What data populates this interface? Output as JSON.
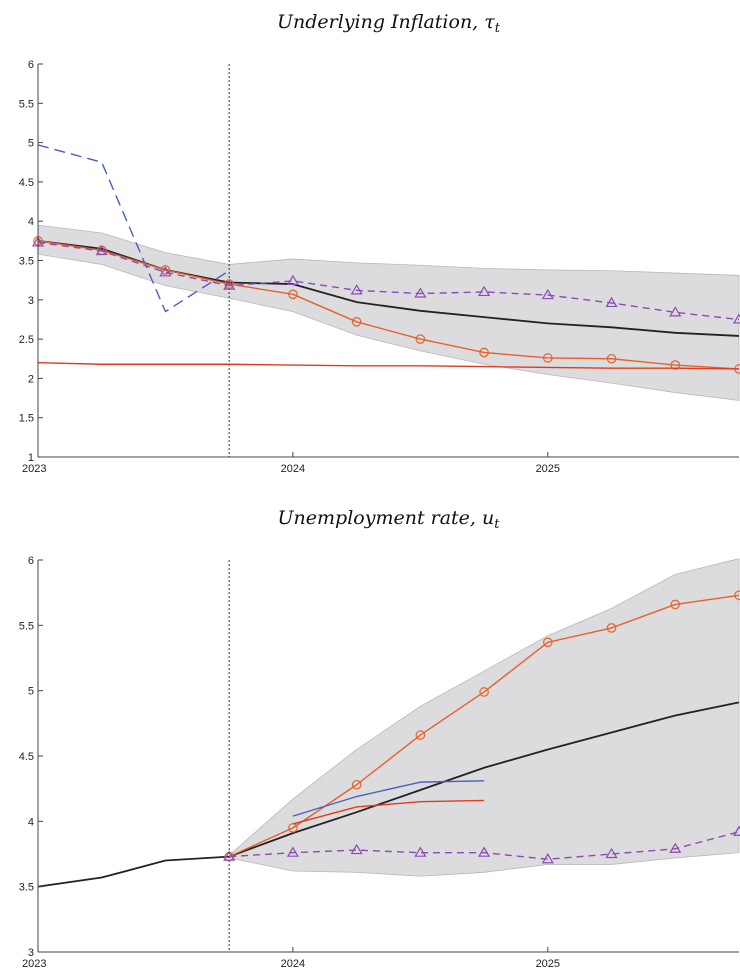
{
  "chart_data": [
    {
      "type": "line",
      "title": "Underlying Inflation, τt",
      "xlabel": "",
      "ylabel": "",
      "xlim": [
        "2023",
        "2025-10"
      ],
      "ylim": [
        1,
        6
      ],
      "x_ticks": [
        "2023",
        "2024",
        "2025"
      ],
      "y_ticks": [
        "1",
        "1.5",
        "2",
        "2.5",
        "3",
        "3.5",
        "4",
        "4.5",
        "5",
        "5.5",
        "6"
      ],
      "grid": false,
      "vline": "2023-10",
      "x": [
        "2023-01",
        "2023-04",
        "2023-07",
        "2023-10",
        "2024-01",
        "2024-04",
        "2024-07",
        "2024-10",
        "2025-01",
        "2025-04",
        "2025-07",
        "2025-10"
      ],
      "band": {
        "lower": [
          3.58,
          3.45,
          3.18,
          3.02,
          2.85,
          2.55,
          2.35,
          2.18,
          2.05,
          1.94,
          1.82,
          1.72
        ],
        "upper": [
          3.95,
          3.85,
          3.6,
          3.45,
          3.52,
          3.47,
          3.44,
          3.4,
          3.38,
          3.37,
          3.34,
          3.31
        ]
      },
      "series": [
        {
          "style": "solid",
          "color": "#222222",
          "marker": "none",
          "values": [
            3.75,
            3.65,
            3.38,
            3.22,
            3.2,
            2.97,
            2.86,
            2.78,
            2.7,
            2.65,
            2.58,
            2.54
          ]
        },
        {
          "style": "dashed",
          "color": "#4a5fc1",
          "marker": "none",
          "values": [
            4.97,
            4.75,
            2.85,
            3.37,
            null,
            null,
            null,
            null,
            null,
            null,
            null,
            null
          ]
        },
        {
          "style": "solid",
          "color": "#e8602a",
          "marker": "circle",
          "values": [
            3.75,
            3.63,
            3.38,
            3.2,
            3.07,
            2.72,
            2.5,
            2.33,
            2.26,
            2.25,
            2.17,
            2.12
          ]
        },
        {
          "style": "dashed",
          "color": "#8a4bb5",
          "marker": "triangle",
          "values": [
            3.73,
            3.62,
            3.35,
            3.18,
            3.24,
            3.12,
            3.08,
            3.1,
            3.06,
            2.96,
            2.84,
            2.75
          ]
        },
        {
          "style": "solid",
          "color": "#e23a1f",
          "marker": "none",
          "values": [
            2.2,
            2.18,
            2.18,
            2.18,
            2.17,
            2.16,
            2.16,
            2.15,
            2.14,
            2.13,
            2.13,
            2.12
          ]
        }
      ]
    },
    {
      "type": "line",
      "title": "Unemployment rate, ut",
      "xlabel": "",
      "ylabel": "",
      "xlim": [
        "2023",
        "2025-10"
      ],
      "ylim": [
        3,
        6
      ],
      "x_ticks": [
        "2023",
        "2024",
        "2025"
      ],
      "y_ticks": [
        "3",
        "3.5",
        "4",
        "4.5",
        "5",
        "5.5",
        "6"
      ],
      "grid": false,
      "vline": "2023-10",
      "x": [
        "2023-01",
        "2023-04",
        "2023-07",
        "2023-10",
        "2024-01",
        "2024-04",
        "2024-07",
        "2024-10",
        "2025-01",
        "2025-04",
        "2025-07",
        "2025-10"
      ],
      "band": {
        "lower": [
          null,
          null,
          null,
          3.72,
          3.62,
          3.61,
          3.58,
          3.61,
          3.67,
          3.67,
          3.72,
          3.76
        ],
        "upper": [
          null,
          null,
          null,
          3.74,
          4.17,
          4.55,
          4.88,
          5.15,
          5.42,
          5.63,
          5.89,
          6.01
        ]
      },
      "series": [
        {
          "style": "solid",
          "color": "#222222",
          "marker": "none",
          "values": [
            3.5,
            3.57,
            3.7,
            3.73,
            3.91,
            4.07,
            4.24,
            4.41,
            4.55,
            4.68,
            4.81,
            4.91
          ]
        },
        {
          "style": "solid",
          "color": "#e8602a",
          "marker": "circle",
          "values": [
            null,
            null,
            null,
            3.73,
            3.95,
            4.28,
            4.66,
            4.99,
            5.37,
            5.48,
            5.66,
            5.73
          ]
        },
        {
          "style": "dashed",
          "color": "#8a4bb5",
          "marker": "triangle",
          "values": [
            null,
            null,
            null,
            3.73,
            3.76,
            3.78,
            3.76,
            3.76,
            3.71,
            3.75,
            3.79,
            3.92
          ]
        },
        {
          "style": "solid",
          "color": "#4a5fc1",
          "marker": "none",
          "values": [
            null,
            null,
            null,
            null,
            4.04,
            4.19,
            4.3,
            4.31,
            null,
            null,
            null,
            null
          ]
        },
        {
          "style": "solid",
          "color": "#e23a1f",
          "marker": "none",
          "values": [
            null,
            null,
            null,
            null,
            3.98,
            4.11,
            4.15,
            4.16,
            null,
            null,
            null,
            null
          ]
        }
      ]
    }
  ]
}
